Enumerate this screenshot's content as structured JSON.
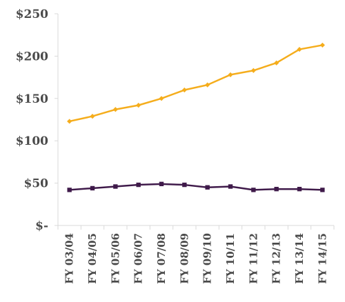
{
  "chart_data": {
    "type": "line",
    "title": "",
    "xlabel": "",
    "ylabel": "",
    "categories": [
      "FY 03/04",
      "FY 04/05",
      "FY 05/06",
      "FY 06/07",
      "FY 07/08",
      "FY 08/09",
      "FY 09/10",
      "FY 10/11",
      "FY 11/12",
      "FY 12/13",
      "FY 13/14",
      "FY 14/15"
    ],
    "ylim": [
      0,
      250
    ],
    "y_ticks": [
      {
        "value": 0,
        "label": "$-"
      },
      {
        "value": 50,
        "label": "$50"
      },
      {
        "value": 100,
        "label": "$100"
      },
      {
        "value": 150,
        "label": "$150"
      },
      {
        "value": 200,
        "label": "$200"
      },
      {
        "value": 250,
        "label": "$250"
      }
    ],
    "grid": false,
    "legend": "none",
    "series": [
      {
        "color": "#f5ad1c",
        "marker": "diamond",
        "values": [
          123,
          129,
          137,
          142,
          150,
          160,
          166,
          178,
          183,
          192,
          208,
          213
        ]
      },
      {
        "color": "#3f1a4a",
        "marker": "square",
        "values": [
          42,
          44,
          46,
          48,
          49,
          48,
          45,
          46,
          42,
          43,
          43,
          42
        ]
      }
    ]
  }
}
